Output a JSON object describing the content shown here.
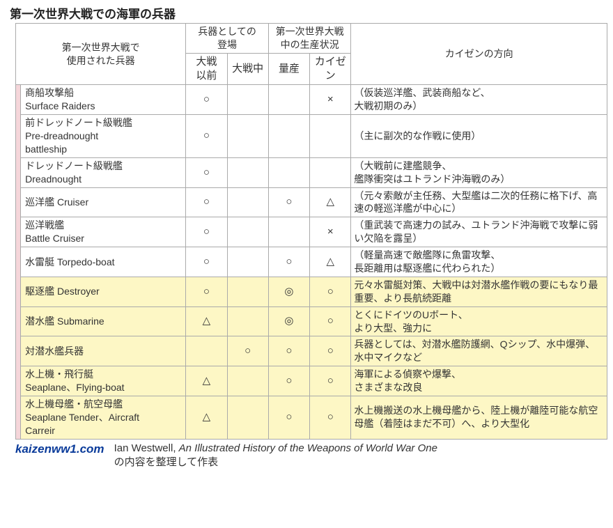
{
  "title": "第一次世界大戦での海軍の兵器",
  "headers": {
    "weapon": "第一次世界大戦で\n使用された兵器",
    "appearance": "兵器としての\n登場",
    "production": "第一次世界大戦\n中の生産状況",
    "direction": "カイゼンの方向",
    "prewar": "大戦\n以前",
    "midwar": "大戦中",
    "mass": "量産",
    "kaizen": "カイゼン"
  },
  "rows": [
    {
      "hl": false,
      "name_jp": "商船攻撃船",
      "name_en": "Surface Raiders",
      "prewar": "○",
      "midwar": "",
      "mass": "",
      "kaizen": "×",
      "dir": "（仮装巡洋艦、武装商船など、\n大戦初期のみ）"
    },
    {
      "hl": false,
      "name_jp": "前ドレッドノート級戦艦",
      "name_en": "Pre-dreadnought\nbattleship",
      "prewar": "○",
      "midwar": "",
      "mass": "",
      "kaizen": "",
      "dir": "（主に副次的な作戦に使用）"
    },
    {
      "hl": false,
      "name_jp": "ドレッドノート級戦艦",
      "name_en": "Dreadnought",
      "prewar": "○",
      "midwar": "",
      "mass": "",
      "kaizen": "",
      "dir": "（大戦前に建艦競争、\n艦隊衝突はユトランド沖海戦のみ）"
    },
    {
      "hl": false,
      "name_jp": "巡洋艦 Cruiser",
      "name_en": "",
      "prewar": "○",
      "midwar": "",
      "mass": "○",
      "kaizen": "△",
      "dir": "（元々索敵が主任務、大型艦は二次的任務に格下げ、高速の軽巡洋艦が中心に）"
    },
    {
      "hl": false,
      "name_jp": "巡洋戦艦",
      "name_en": "Battle Cruiser",
      "prewar": "○",
      "midwar": "",
      "mass": "",
      "kaizen": "×",
      "dir": "（重武装で高速力の試み、ユトランド沖海戦で攻撃に弱い欠陥を露呈）"
    },
    {
      "hl": false,
      "name_jp": "水雷艇 Torpedo-boat",
      "name_en": "",
      "prewar": "○",
      "midwar": "",
      "mass": "○",
      "kaizen": "△",
      "dir": "（軽量高速で敵艦隊に魚雷攻撃、\n長距離用は駆逐艦に代わられた）"
    },
    {
      "hl": true,
      "name_jp": "駆逐艦 Destroyer",
      "name_en": "",
      "prewar": "○",
      "midwar": "",
      "mass": "◎",
      "kaizen": "○",
      "dir": "元々水雷艇対策、大戦中は対潜水艦作戦の要にもなり最重要、より長航続距離"
    },
    {
      "hl": true,
      "name_jp": "潜水艦 Submarine",
      "name_en": "",
      "prewar": "△",
      "midwar": "",
      "mass": "◎",
      "kaizen": "○",
      "dir": "とくにドイツのUボート、\nより大型、強力に"
    },
    {
      "hl": true,
      "name_jp": "対潜水艦兵器",
      "name_en": "",
      "prewar": "",
      "midwar": "○",
      "mass": "○",
      "kaizen": "○",
      "dir": "兵器としては、対潜水艦防護網、Qシップ、水中爆弾、水中マイクなど"
    },
    {
      "hl": true,
      "name_jp": "水上機・飛行艇",
      "name_en": "Seaplane、Flying-boat",
      "prewar": "△",
      "midwar": "",
      "mass": "○",
      "kaizen": "○",
      "dir": "海軍による偵察や爆撃、\nさまざまな改良"
    },
    {
      "hl": true,
      "name_jp": "水上機母艦・航空母艦",
      "name_en": "Seaplane Tender、Aircraft\nCarreir",
      "prewar": "△",
      "midwar": "",
      "mass": "○",
      "kaizen": "○",
      "dir": "水上機搬送の水上機母艦から、陸上機が離陸可能な航空母艦（着陸はまだ不可）へ、より大型化"
    }
  ],
  "footer": {
    "site": "kaizenww1.com",
    "author": "Ian Westwell, ",
    "book": "An Illustrated History of the Weapons of World War One",
    "suffix": "の内容を整理して作表"
  }
}
